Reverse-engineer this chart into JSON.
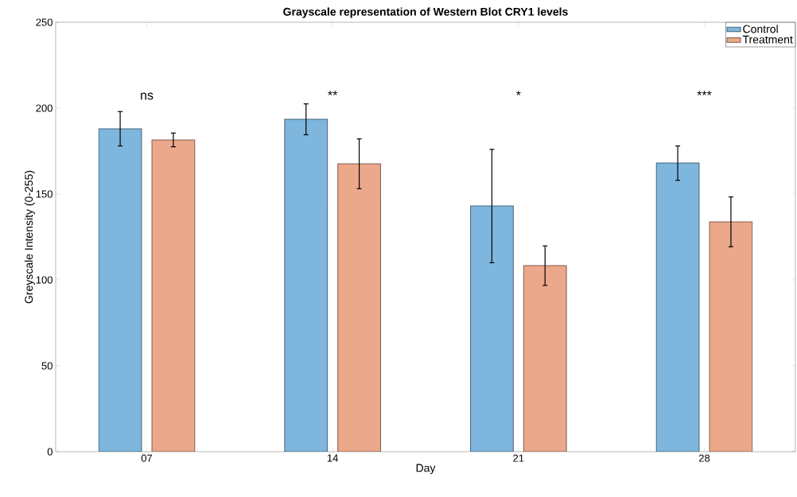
{
  "chart_data": {
    "type": "bar",
    "title": "Grayscale representation of Western Blot CRY1 levels",
    "xlabel": "Day",
    "ylabel": "Greyscale Intensity (0-255)",
    "categories": [
      "07",
      "14",
      "21",
      "28"
    ],
    "series": [
      {
        "name": "Control",
        "color": "#7eb6dd",
        "values": [
          188,
          193.5,
          143,
          168
        ],
        "errors": [
          10,
          9,
          33,
          10
        ]
      },
      {
        "name": "Treatment",
        "color": "#eba88a",
        "values": [
          181.5,
          167.6,
          108.3,
          133.8
        ],
        "errors": [
          4,
          14.5,
          11.5,
          14.5
        ]
      }
    ],
    "ylim": [
      0,
      250
    ],
    "yticks": [
      0,
      50,
      100,
      150,
      200,
      250
    ],
    "annotations": [
      "ns",
      "**",
      "*",
      "***"
    ],
    "legend": "top right",
    "grid": false
  }
}
